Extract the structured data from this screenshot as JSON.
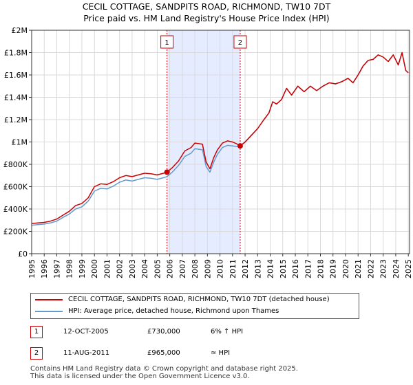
{
  "title_line1": "CECIL COTTAGE, SANDPITS ROAD, RICHMOND, TW10 7DT",
  "title_line2": "Price paid vs. HM Land Registry's House Price Index (HPI)",
  "colors": {
    "property": "#cc0000",
    "hpi": "#6699cc",
    "shade": "#e6ecff",
    "grid": "#d9d9d9",
    "marker": "#cc0000"
  },
  "chart_data": {
    "type": "line",
    "title": "Price paid vs. HM Land Registry's House Price Index (HPI)",
    "xlabel": "",
    "ylabel": "",
    "xlim": [
      1995.0,
      2025.1
    ],
    "ylim": [
      0,
      2000000
    ],
    "y_ticks": [
      0,
      200000,
      400000,
      600000,
      800000,
      1000000,
      1200000,
      1400000,
      1600000,
      1800000,
      2000000
    ],
    "y_tick_labels": [
      "£0",
      "£200K",
      "£400K",
      "£600K",
      "£800K",
      "£1M",
      "£1.2M",
      "£1.4M",
      "£1.6M",
      "£1.8M",
      "£2M"
    ],
    "x_ticks": [
      1995,
      1996,
      1997,
      1998,
      1999,
      2000,
      2001,
      2002,
      2003,
      2004,
      2005,
      2006,
      2007,
      2008,
      2009,
      2010,
      2011,
      2012,
      2013,
      2014,
      2015,
      2016,
      2017,
      2018,
      2019,
      2020,
      2021,
      2022,
      2023,
      2024,
      2025
    ],
    "x_tick_labels": [
      "1995",
      "1996",
      "1997",
      "1998",
      "1999",
      "2000",
      "2001",
      "2002",
      "2003",
      "2004",
      "2005",
      "2006",
      "2007",
      "2008",
      "2009",
      "2010",
      "2011",
      "2012",
      "2013",
      "2014",
      "2015",
      "2016",
      "2017",
      "2018",
      "2019",
      "2020",
      "2021",
      "2022",
      "2023",
      "2024",
      "2025"
    ],
    "grid": true,
    "shaded_range": [
      2005.78,
      2011.61
    ],
    "series": [
      {
        "name": "CECIL COTTAGE, SANDPITS ROAD, RICHMOND, TW10 7DT (detached house)",
        "x": [
          1995.0,
          1995.5,
          1996.0,
          1996.5,
          1997.0,
          1997.5,
          1998.0,
          1998.5,
          1999.0,
          1999.5,
          2000.0,
          2000.5,
          2001.0,
          2001.5,
          2002.0,
          2002.5,
          2003.0,
          2003.5,
          2004.0,
          2004.5,
          2005.0,
          2005.5,
          2005.78,
          2006.2,
          2006.7,
          2007.2,
          2007.7,
          2008.0,
          2008.3,
          2008.6,
          2008.9,
          2009.2,
          2009.5,
          2009.8,
          2010.2,
          2010.6,
          2011.0,
          2011.3,
          2011.61,
          2012.0,
          2012.5,
          2013.0,
          2013.5,
          2013.9,
          2014.2,
          2014.5,
          2014.9,
          2015.3,
          2015.7,
          2016.2,
          2016.7,
          2017.2,
          2017.7,
          2018.2,
          2018.7,
          2019.2,
          2019.7,
          2020.2,
          2020.6,
          2021.0,
          2021.4,
          2021.8,
          2022.2,
          2022.6,
          2023.0,
          2023.4,
          2023.8,
          2024.2,
          2024.5,
          2024.8,
          2025.0
        ],
        "y": [
          270000,
          275000,
          280000,
          292000,
          310000,
          345000,
          380000,
          430000,
          450000,
          500000,
          600000,
          625000,
          620000,
          645000,
          680000,
          700000,
          690000,
          705000,
          720000,
          715000,
          705000,
          720000,
          730000,
          770000,
          830000,
          920000,
          950000,
          990000,
          985000,
          980000,
          820000,
          760000,
          860000,
          930000,
          990000,
          1010000,
          1000000,
          985000,
          965000,
          1000000,
          1060000,
          1120000,
          1200000,
          1260000,
          1360000,
          1340000,
          1380000,
          1480000,
          1420000,
          1500000,
          1450000,
          1500000,
          1460000,
          1500000,
          1530000,
          1520000,
          1540000,
          1570000,
          1530000,
          1600000,
          1680000,
          1730000,
          1740000,
          1780000,
          1760000,
          1720000,
          1780000,
          1690000,
          1800000,
          1640000,
          1620000
        ]
      },
      {
        "name": "HPI: Average price, detached house, Richmond upon Thames",
        "x": [
          1995.0,
          1995.5,
          1996.0,
          1996.5,
          1997.0,
          1997.5,
          1998.0,
          1998.5,
          1999.0,
          1999.5,
          2000.0,
          2000.5,
          2001.0,
          2001.5,
          2002.0,
          2002.5,
          2003.0,
          2003.5,
          2004.0,
          2004.5,
          2005.0,
          2005.5,
          2005.78,
          2006.2,
          2006.7,
          2007.2,
          2007.7,
          2008.0,
          2008.3,
          2008.6,
          2008.9,
          2009.2,
          2009.5,
          2009.8,
          2010.2,
          2010.6,
          2011.0,
          2011.3,
          2011.61,
          2012.0,
          2012.5,
          2013.0,
          2013.5,
          2013.9,
          2014.2,
          2014.5,
          2014.9,
          2015.3,
          2015.7,
          2016.2,
          2016.7,
          2017.2,
          2017.7,
          2018.2,
          2018.7,
          2019.2,
          2019.7,
          2020.2,
          2020.6,
          2021.0,
          2021.4,
          2021.8,
          2022.2,
          2022.6,
          2023.0,
          2023.4,
          2023.8,
          2024.2,
          2024.5,
          2024.8,
          2025.0
        ],
        "y": [
          255000,
          260000,
          265000,
          275000,
          292000,
          325000,
          355000,
          400000,
          420000,
          470000,
          560000,
          585000,
          580000,
          605000,
          640000,
          660000,
          650000,
          665000,
          680000,
          675000,
          665000,
          680000,
          690000,
          730000,
          790000,
          870000,
          900000,
          940000,
          935000,
          930000,
          780000,
          730000,
          820000,
          890000,
          950000,
          970000,
          965000,
          960000,
          965000,
          1000000,
          1060000,
          1120000,
          1200000,
          1260000,
          1360000,
          1340000,
          1380000,
          1480000,
          1420000,
          1500000,
          1450000,
          1500000,
          1460000,
          1500000,
          1530000,
          1520000,
          1540000,
          1570000,
          1530000,
          1600000,
          1680000,
          1730000,
          1740000,
          1780000,
          1760000,
          1720000,
          1780000,
          1690000,
          1800000,
          1640000,
          1620000
        ]
      }
    ],
    "sales": [
      {
        "label": "1",
        "x": 2005.78,
        "y": 730000
      },
      {
        "label": "2",
        "x": 2011.61,
        "y": 965000
      }
    ]
  },
  "legend": {
    "property_label": "CECIL COTTAGE, SANDPITS ROAD, RICHMOND, TW10 7DT (detached house)",
    "hpi_label": "HPI: Average price, detached house, Richmond upon Thames"
  },
  "sales_table": [
    {
      "label": "1",
      "date": "12-OCT-2005",
      "price": "£730,000",
      "hpi": "6% ↑ HPI"
    },
    {
      "label": "2",
      "date": "11-AUG-2011",
      "price": "£965,000",
      "hpi": "≈ HPI"
    }
  ],
  "footer": {
    "line1": "Contains HM Land Registry data © Crown copyright and database right 2025.",
    "line2": "This data is licensed under the Open Government Licence v3.0."
  }
}
